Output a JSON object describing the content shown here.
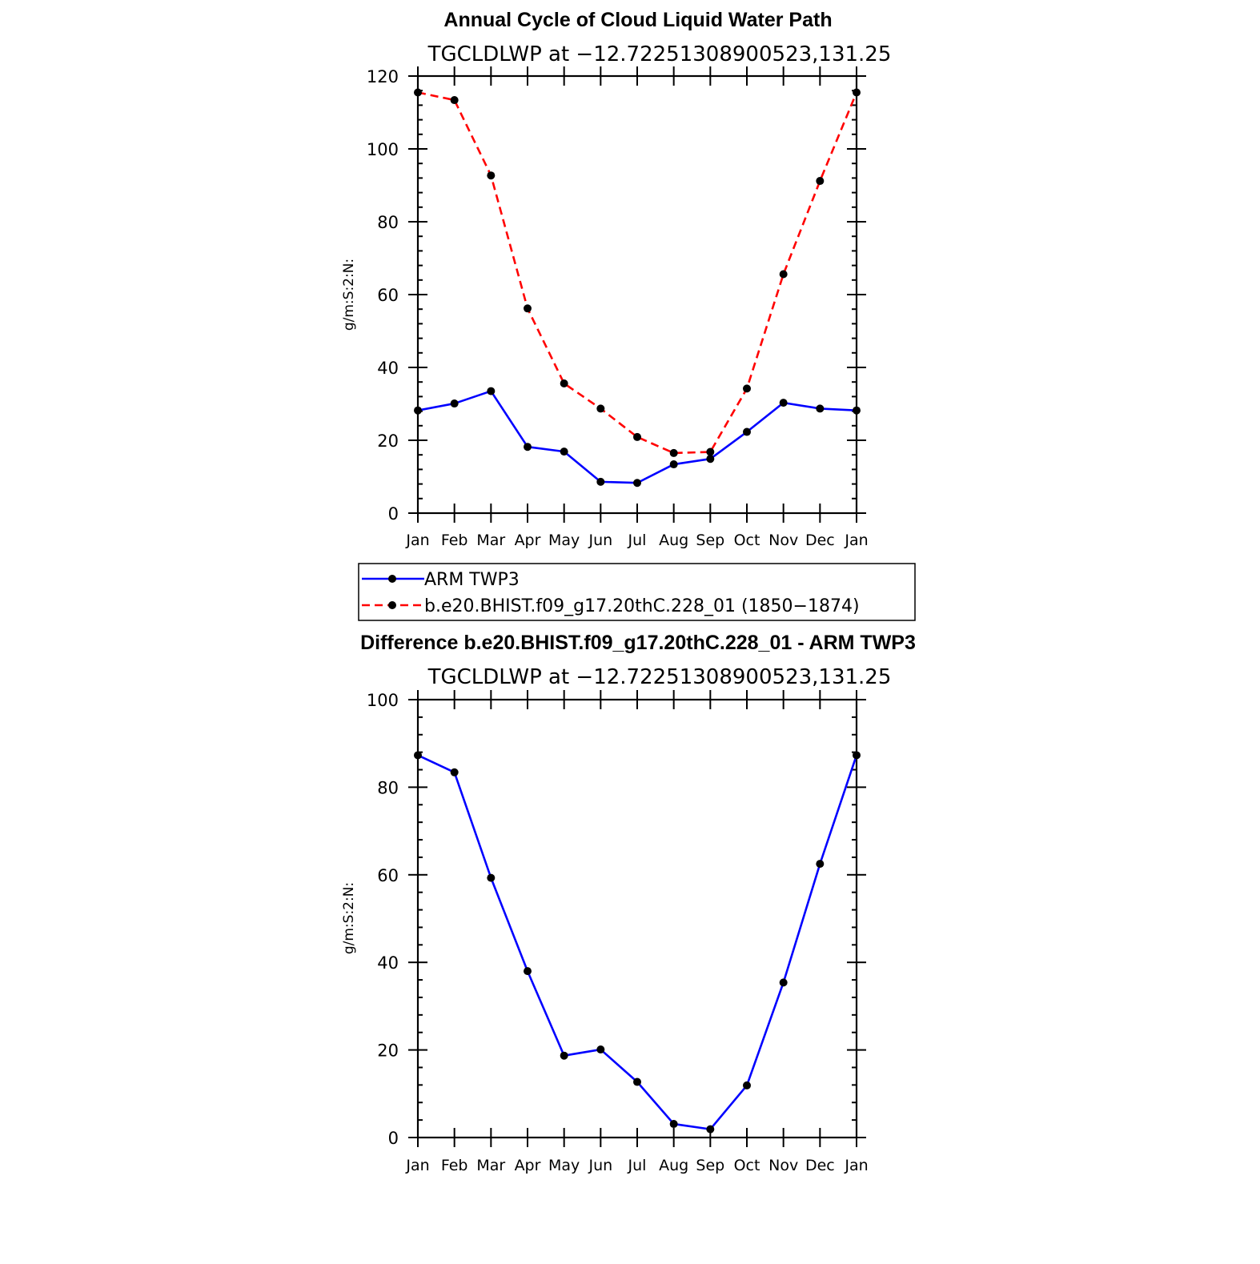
{
  "chart_data": [
    {
      "type": "line",
      "title": "Annual Cycle of Cloud Liquid Water Path",
      "subtitle": "TGCLDLWP at −12.72251308900523,131.25",
      "xlabel": "",
      "ylabel": "g/m:S:2:N:",
      "categories": [
        "Jan",
        "Feb",
        "Mar",
        "Apr",
        "May",
        "Jun",
        "Jul",
        "Aug",
        "Sep",
        "Oct",
        "Nov",
        "Dec",
        "Jan"
      ],
      "ylim": [
        0,
        120
      ],
      "yticks": [
        0,
        20,
        40,
        60,
        80,
        100,
        120
      ],
      "ytick_labels": [
        "0",
        "20",
        "40",
        "60",
        "80",
        "100",
        "120"
      ],
      "series": [
        {
          "name": "ARM TWP3",
          "color": "#0000ff",
          "dash": "solid",
          "values": [
            28.2,
            30.1,
            33.5,
            18.2,
            16.9,
            8.6,
            8.3,
            13.4,
            14.9,
            22.3,
            30.3,
            28.7,
            28.2
          ]
        },
        {
          "name": "b.e20.BHIST.f09_g17.20thC.228_01 (1850−1874)",
          "color": "#ff0000",
          "dash": "dashed",
          "values": [
            115.5,
            113.4,
            92.7,
            56.2,
            35.6,
            28.7,
            20.9,
            16.5,
            16.8,
            34.2,
            65.6,
            91.2,
            115.5
          ]
        }
      ],
      "legend": {
        "position": "bottom-center",
        "entries": [
          "ARM TWP3",
          "b.e20.BHIST.f09_g17.20thC.228_01 (1850−1874)"
        ]
      }
    },
    {
      "type": "line",
      "title": "Difference b.e20.BHIST.f09_g17.20thC.228_01 - ARM TWP3",
      "subtitle": "TGCLDLWP at −12.72251308900523,131.25",
      "xlabel": "",
      "ylabel": "g/m:S:2:N:",
      "categories": [
        "Jan",
        "Feb",
        "Mar",
        "Apr",
        "May",
        "Jun",
        "Jul",
        "Aug",
        "Sep",
        "Oct",
        "Nov",
        "Dec",
        "Jan"
      ],
      "ylim": [
        0,
        100
      ],
      "yticks": [
        0,
        20,
        40,
        60,
        80,
        100
      ],
      "ytick_labels": [
        "0",
        "20",
        "40",
        "60",
        "80",
        "100"
      ],
      "series": [
        {
          "name": "Difference",
          "color": "#0000ff",
          "dash": "solid",
          "values": [
            87.3,
            83.4,
            59.3,
            38.0,
            18.7,
            20.1,
            12.7,
            3.1,
            1.9,
            11.9,
            35.4,
            62.5,
            87.3
          ]
        }
      ]
    }
  ]
}
